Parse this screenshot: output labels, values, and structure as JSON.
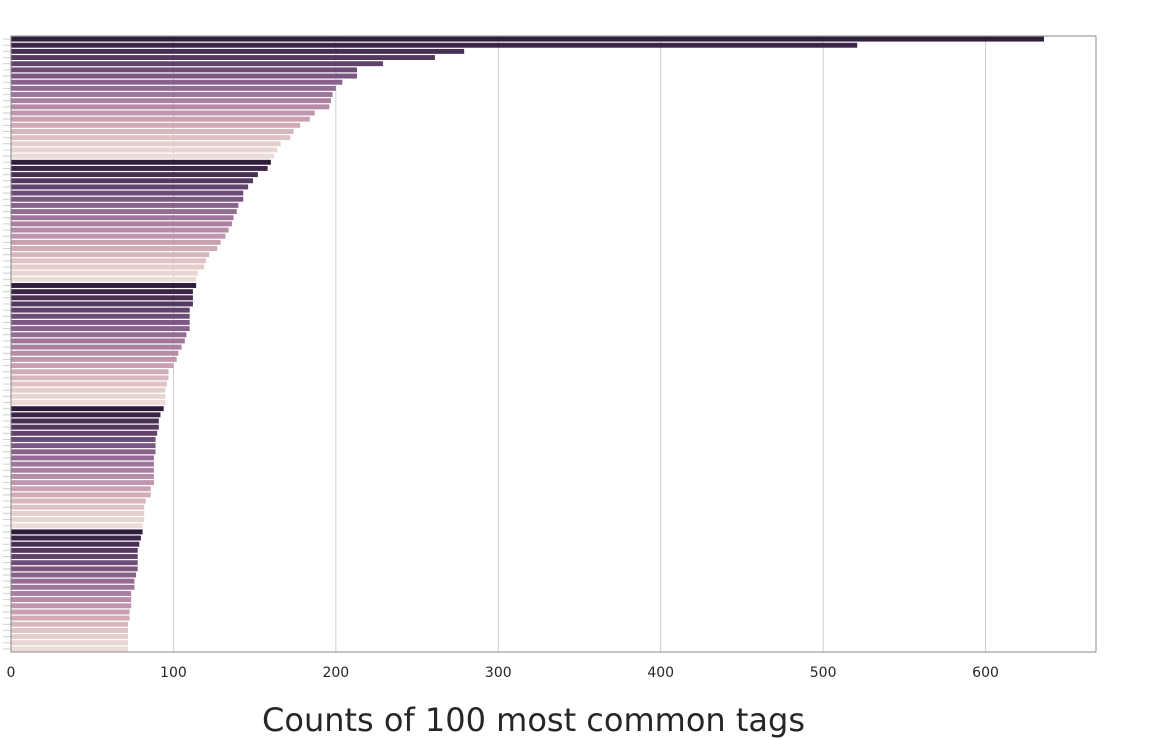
{
  "chart_data": {
    "type": "bar",
    "orientation": "horizontal",
    "title": "",
    "xlabel": "Counts of 100 most common tags",
    "ylabel": "",
    "xlim": [
      0,
      668
    ],
    "xticks": [
      "0",
      "100",
      "200",
      "300",
      "400",
      "500",
      "600"
    ],
    "xtick_values": [
      0,
      100,
      200,
      300,
      400,
      500,
      600
    ],
    "grid": "vertical",
    "values": [
      636,
      521,
      279,
      261,
      229,
      213,
      213,
      204,
      200,
      198,
      197,
      196,
      187,
      184,
      178,
      174,
      172,
      166,
      164,
      162,
      160,
      158,
      152,
      149,
      146,
      143,
      143,
      140,
      139,
      137,
      136,
      134,
      132,
      129,
      127,
      122,
      120,
      119,
      115,
      114,
      114,
      112,
      112,
      112,
      110,
      110,
      110,
      110,
      108,
      107,
      105,
      103,
      102,
      100,
      97,
      97,
      96,
      95,
      95,
      95,
      94,
      92,
      91,
      91,
      90,
      89,
      89,
      89,
      88,
      88,
      88,
      88,
      88,
      86,
      86,
      83,
      82,
      82,
      82,
      81,
      81,
      80,
      79,
      78,
      78,
      78,
      78,
      77,
      76,
      76,
      74,
      74,
      74,
      73,
      73,
      72,
      72,
      72,
      72,
      72
    ],
    "palette": [
      "#2e1e3b",
      "#4c3259",
      "#6a4a75",
      "#8a638c",
      "#a57b9f",
      "#bf94ae",
      "#d3aeb7",
      "#e3cbc8",
      "#ecdcd8"
    ]
  }
}
